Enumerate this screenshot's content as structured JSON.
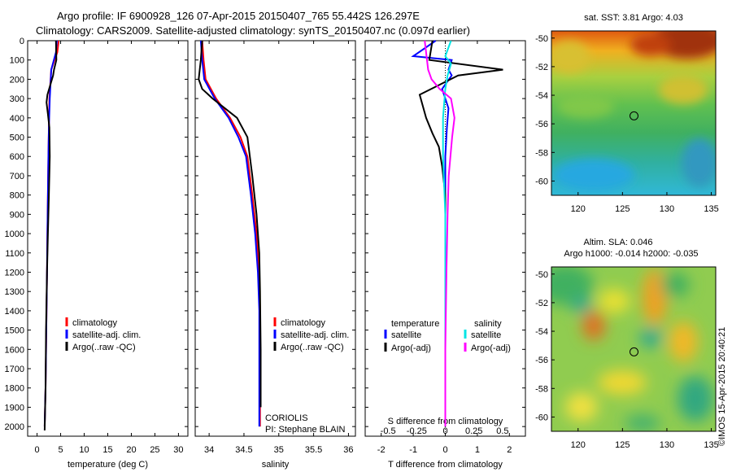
{
  "header": {
    "line1": "Argo profile: IF 6900928_126 07-Apr-2015 20150407_765 55.442S 126.297E",
    "line2": "Climatology: CARS2009. Satellite-adjusted climatology: synTS_20150407.nc (0.097d earlier)"
  },
  "colors": {
    "red": "#ff0000",
    "blue": "#0000ff",
    "black": "#000000",
    "cyan": "#00e5e5",
    "magenta": "#ff00ff"
  },
  "chart_data": [
    {
      "type": "line",
      "xlabel": "temperature (deg C)",
      "xlim": [
        -2,
        32
      ],
      "ylim": [
        0,
        2050
      ],
      "y_reversed": true,
      "xticks": [
        0,
        5,
        10,
        15,
        20,
        25,
        30
      ],
      "yticks": [
        0,
        100,
        200,
        300,
        400,
        500,
        600,
        700,
        800,
        900,
        1000,
        1100,
        1200,
        1300,
        1400,
        1500,
        1600,
        1700,
        1800,
        1900,
        2000
      ],
      "legend": [
        "climatology",
        "satellite-adj. clim.",
        "Argo(..raw -QC)"
      ],
      "series": [
        {
          "name": "climatology",
          "color": "red",
          "x": [
            4.6,
            4.3,
            3.0,
            2.6,
            2.5,
            2.4,
            2.3,
            2.2,
            2.1,
            2.0,
            1.9,
            1.8,
            1.6
          ],
          "y": [
            0,
            60,
            150,
            300,
            450,
            600,
            800,
            1000,
            1200,
            1400,
            1600,
            1800,
            2000
          ]
        },
        {
          "name": "satellite-adj. clim.",
          "color": "blue",
          "x": [
            4.2,
            4.0,
            3.0,
            2.7,
            2.5,
            2.4,
            2.3,
            2.2,
            2.1,
            2.0,
            1.9,
            1.8,
            1.6
          ],
          "y": [
            0,
            60,
            150,
            300,
            450,
            600,
            800,
            1000,
            1200,
            1400,
            1600,
            1800,
            2000
          ]
        },
        {
          "name": "Argo(..raw -QC)",
          "color": "black",
          "x": [
            4.0,
            4.1,
            3.6,
            3.4,
            2.2,
            2.0,
            2.3,
            2.6,
            2.7,
            2.5,
            2.3,
            2.1,
            1.9,
            1.8,
            1.6
          ],
          "y": [
            0,
            100,
            150,
            180,
            280,
            320,
            380,
            450,
            600,
            800,
            1000,
            1200,
            1500,
            1800,
            2020
          ]
        }
      ]
    },
    {
      "type": "line",
      "xlabel": "salinity",
      "xlim": [
        33.8,
        36.1
      ],
      "ylim": [
        0,
        2050
      ],
      "y_reversed": true,
      "xticks": [
        34,
        34.5,
        35,
        35.5,
        36
      ],
      "legend": [
        "climatology",
        "satellite-adj. clim.",
        "Argo(..raw -QC)"
      ],
      "annotations": [
        "CORIOLIS",
        "PI: Stephane BLAIN"
      ],
      "series": [
        {
          "name": "climatology",
          "color": "red",
          "x": [
            33.9,
            33.92,
            33.95,
            34.1,
            34.3,
            34.45,
            34.55,
            34.62,
            34.68,
            34.72,
            34.73,
            34.73,
            34.73
          ],
          "y": [
            0,
            100,
            200,
            300,
            400,
            500,
            600,
            800,
            1000,
            1200,
            1400,
            1700,
            2000
          ]
        },
        {
          "name": "satellite-adj. clim.",
          "color": "blue",
          "x": [
            33.88,
            33.9,
            33.93,
            34.08,
            34.28,
            34.42,
            34.53,
            34.6,
            34.66,
            34.7,
            34.72,
            34.72,
            34.72
          ],
          "y": [
            0,
            100,
            200,
            300,
            400,
            500,
            600,
            800,
            1000,
            1200,
            1400,
            1700,
            2000
          ]
        },
        {
          "name": "Argo(..raw -QC)",
          "color": "black",
          "x": [
            33.9,
            33.88,
            33.85,
            33.9,
            34.05,
            34.4,
            34.55,
            34.62,
            34.68,
            34.72,
            34.73,
            34.74,
            34.74
          ],
          "y": [
            0,
            100,
            200,
            250,
            300,
            400,
            500,
            700,
            900,
            1100,
            1300,
            1600,
            1900
          ]
        }
      ]
    },
    {
      "type": "line",
      "xlabel": "T difference from climatology",
      "x2label": "S difference from climatology",
      "xlim": [
        -2.5,
        2.5
      ],
      "x2lim": [
        -0.7,
        0.7
      ],
      "ylim": [
        0,
        2050
      ],
      "y_reversed": true,
      "xticks": [
        -2,
        -1,
        0,
        1,
        2
      ],
      "x2ticks": [
        -0.5,
        -0.25,
        0,
        0.25,
        0.5
      ],
      "legend_headers": [
        "temperature",
        "salinity"
      ],
      "legend": [
        "satellite",
        "Argo(-adj)",
        "satellite",
        "Argo(-adj)"
      ],
      "series": [
        {
          "name": "satellite",
          "group": "temperature",
          "color": "blue",
          "x": [
            -0.3,
            -1.0,
            0.2,
            0.1,
            0.2,
            -0.1,
            0.1,
            0.05,
            0.0,
            0.0,
            0.0,
            0.0,
            0.0
          ],
          "y": [
            0,
            80,
            100,
            150,
            180,
            250,
            350,
            450,
            600,
            800,
            1200,
            1600,
            2000
          ]
        },
        {
          "name": "Argo(-adj)",
          "group": "temperature",
          "color": "black",
          "x": [
            -0.4,
            -0.5,
            1.8,
            0.4,
            -0.8,
            -0.6,
            -0.4,
            -0.2,
            -0.1,
            0.0,
            0.0,
            0.0,
            0.0
          ],
          "y": [
            0,
            100,
            150,
            180,
            280,
            400,
            480,
            550,
            650,
            800,
            1200,
            1600,
            2000
          ]
        },
        {
          "name": "satellite",
          "group": "salinity",
          "color": "cyan",
          "x": [
            0.05,
            0.0,
            0.05,
            0.02,
            0.0,
            -0.02,
            -0.02,
            0.0,
            0.0,
            0.0,
            0.0
          ],
          "y": [
            0,
            80,
            120,
            180,
            250,
            400,
            600,
            900,
            1300,
            1700,
            2000
          ]
        },
        {
          "name": "Argo(-adj)",
          "group": "salinity",
          "color": "magenta",
          "x": [
            -0.18,
            -0.15,
            -0.12,
            -0.05,
            0.05,
            0.08,
            0.06,
            0.03,
            0.02,
            0.01,
            0.0,
            0.0
          ],
          "y": [
            0,
            150,
            200,
            250,
            300,
            400,
            500,
            700,
            900,
            1200,
            1600,
            2000
          ]
        }
      ]
    },
    {
      "type": "heatmap",
      "title": "sat. SST: 3.81  Argo: 4.03",
      "xlim": [
        117,
        135.5
      ],
      "ylim": [
        -61,
        -49.5
      ],
      "xticks": [
        120,
        125,
        130,
        135
      ],
      "yticks": [
        -50,
        -52,
        -54,
        -56,
        -58,
        -60
      ],
      "marker": {
        "lon": 126.297,
        "lat": -55.442
      }
    },
    {
      "type": "heatmap",
      "title": "Altim. SLA: 0.046",
      "subtitle": "Argo h1000: -0.014 h2000: -0.035",
      "xlim": [
        117,
        135.5
      ],
      "ylim": [
        -61,
        -49.5
      ],
      "xticks": [
        120,
        125,
        130,
        135
      ],
      "yticks": [
        -50,
        -52,
        -54,
        -56,
        -58,
        -60
      ],
      "marker": {
        "lon": 126.297,
        "lat": -55.442
      }
    }
  ],
  "footer": {
    "credit": "©IMOS 15-Apr-2015 20:40:21"
  }
}
